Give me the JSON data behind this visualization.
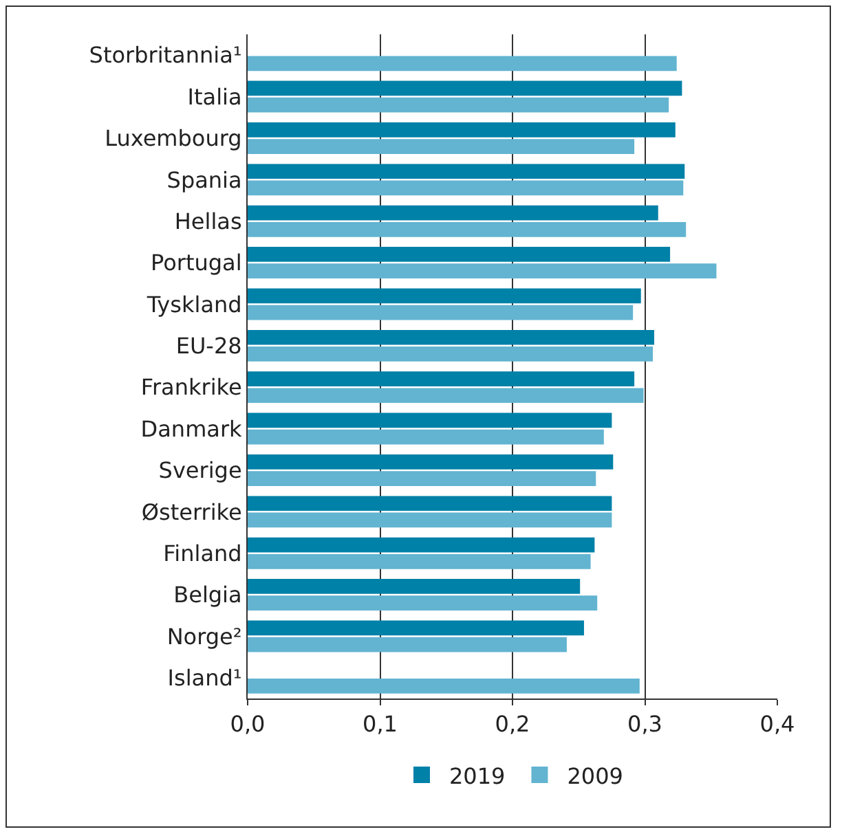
{
  "chart_data": {
    "type": "bar",
    "orientation": "horizontal",
    "categories": [
      "Storbritannia¹",
      "Italia",
      "Luxembourg",
      "Spania",
      "Hellas",
      "Portugal",
      "Tyskland",
      "EU-28",
      "Frankrike",
      "Danmark",
      "Sverige",
      "Østerrike",
      "Finland",
      "Belgia",
      "Norge²",
      "Island¹"
    ],
    "series": [
      {
        "name": "2019",
        "color": "#0081a8",
        "values": [
          null,
          0.328,
          0.323,
          0.33,
          0.31,
          0.319,
          0.297,
          0.307,
          0.292,
          0.275,
          0.276,
          0.275,
          0.262,
          0.251,
          0.254,
          null
        ]
      },
      {
        "name": "2009",
        "color": "#62b4d1",
        "values": [
          0.324,
          0.318,
          0.292,
          0.329,
          0.331,
          0.354,
          0.291,
          0.306,
          0.299,
          0.269,
          0.263,
          0.275,
          0.259,
          0.264,
          0.241,
          0.296
        ]
      }
    ],
    "xlim": [
      0,
      0.4
    ],
    "xticks": [
      {
        "value": 0,
        "label": "0,0"
      },
      {
        "value": 0.1,
        "label": "0,1"
      },
      {
        "value": 0.2,
        "label": "0,2"
      },
      {
        "value": 0.3,
        "label": "0,3"
      },
      {
        "value": 0.4,
        "label": "0,4"
      }
    ],
    "grid": "x",
    "legend": "bottom"
  }
}
